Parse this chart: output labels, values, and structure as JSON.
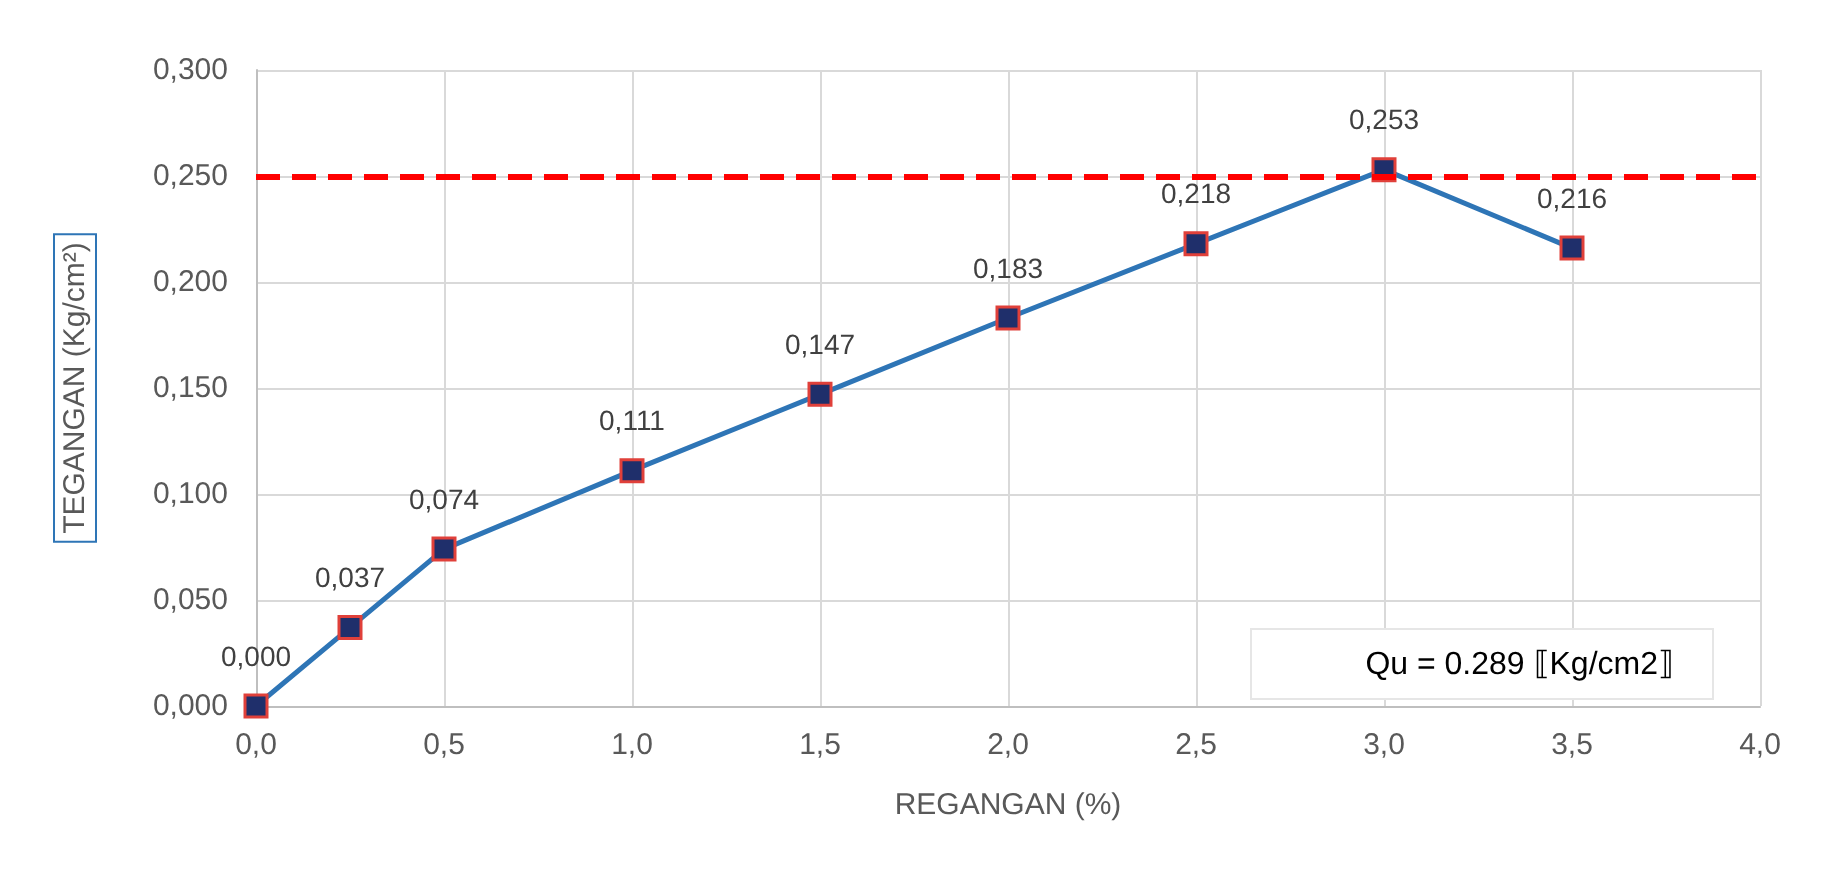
{
  "chart_data": {
    "type": "line",
    "xlabel": "REGANGAN (%)",
    "ylabel": "TEGANGAN (Kg/cm²)",
    "x": [
      0,
      0.25,
      0.5,
      1.0,
      1.5,
      2.0,
      2.5,
      3.0,
      3.5
    ],
    "series": [
      {
        "color": "#2e75b6",
        "values": [
          0.0,
          0.037,
          0.074,
          0.111,
          0.147,
          0.183,
          0.218,
          0.253,
          0.216
        ],
        "value_labels": [
          "0,000",
          "0,037",
          "0,074",
          "0,111",
          "0,147",
          "0,183",
          "0,218",
          "0,253",
          "0,216"
        ]
      }
    ],
    "xlim": [
      0,
      4
    ],
    "xticks": [
      {
        "value": 0,
        "label": "0,0"
      },
      {
        "value": 0.5,
        "label": "0,5"
      },
      {
        "value": 1,
        "label": "1,0"
      },
      {
        "value": 1.5,
        "label": "1,5"
      },
      {
        "value": 2,
        "label": "2,0"
      },
      {
        "value": 2.5,
        "label": "2,5"
      },
      {
        "value": 3,
        "label": "3,0"
      },
      {
        "value": 3.5,
        "label": "3,5"
      },
      {
        "value": 4,
        "label": "4,0"
      }
    ],
    "ylim": [
      0,
      0.3
    ],
    "yticks": [
      {
        "value": 0,
        "label": "0,000"
      },
      {
        "value": 0.05,
        "label": "0,050"
      },
      {
        "value": 0.1,
        "label": "0,100"
      },
      {
        "value": 0.15,
        "label": "0,150"
      },
      {
        "value": 0.2,
        "label": "0,200"
      },
      {
        "value": 0.25,
        "label": "0,250"
      },
      {
        "value": 0.3,
        "label": "0,300"
      }
    ],
    "ref_lines": [
      {
        "axis": "y",
        "value": 0.25,
        "color": "#ff0000",
        "line_style": "dashed"
      }
    ],
    "annotations": [
      "Qu = 0.289 ⟦Kg/cm2⟧"
    ],
    "grid": true,
    "marker": "square",
    "line_style": "solid"
  }
}
